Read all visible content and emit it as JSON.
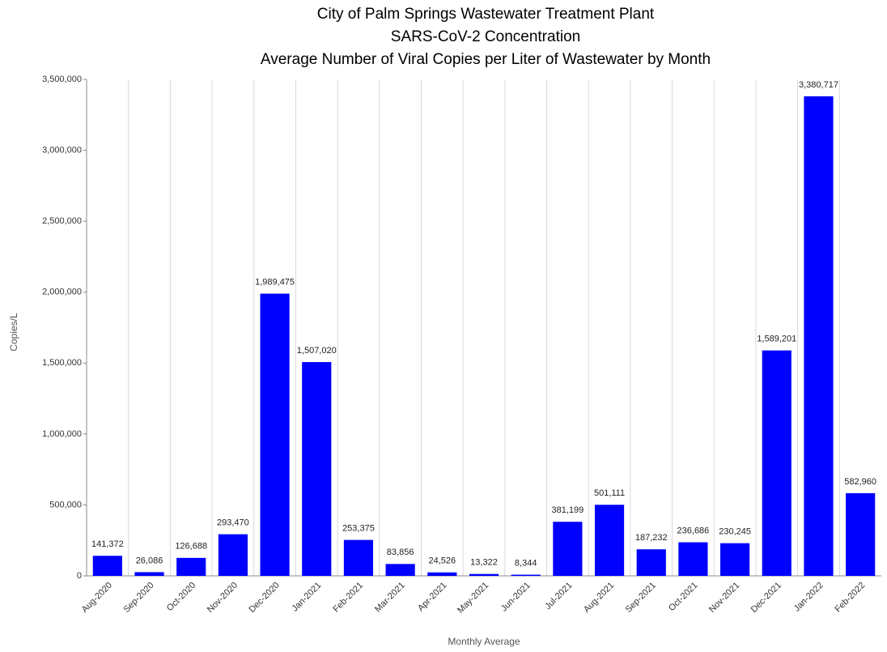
{
  "chart_data": {
    "type": "bar",
    "title": [
      "City of Palm Springs Wastewater Treatment Plant",
      "SARS-CoV-2 Concentration",
      "Average Number of Viral Copies per Liter of Wastewater by Month"
    ],
    "x_label": "Monthly Average",
    "y_label": "Copies/L",
    "categories": [
      "Aug-2020",
      "Sep-2020",
      "Oct-2020",
      "Nov-2020",
      "Dec-2020",
      "Jan-2021",
      "Feb-2021",
      "Mar-2021",
      "Apr-2021",
      "May-2021",
      "Jun-2021",
      "Jul-2021",
      "Aug-2021",
      "Sep-2021",
      "Oct-2021",
      "Nov-2021",
      "Dec-2021",
      "Jan-2022",
      "Feb-2022"
    ],
    "values": [
      141372,
      26086,
      126688,
      293470,
      1989475,
      1507020,
      253375,
      83856,
      24526,
      13322,
      8344,
      381199,
      501111,
      187232,
      236686,
      230245,
      1589201,
      3380717,
      582960
    ],
    "value_labels": [
      "141,372",
      "26,086",
      "126,688",
      "293,470",
      "1,989,475",
      "1,507,020",
      "253,375",
      "83,856",
      "24,526",
      "13,322",
      "8,344",
      "381,199",
      "501,111",
      "187,232",
      "236,686",
      "230,245",
      "1,589,201",
      "3,380,717",
      "582,960"
    ],
    "color": "#0000ff",
    "ylim": [
      0,
      3500000
    ],
    "yticks": [
      0,
      {
        "value": 500000,
        "label": "500,000"
      },
      {
        "value": 1000000,
        "label": "1,000,000"
      },
      {
        "value": 1500000,
        "label": "1,500,000"
      },
      {
        "value": 2000000,
        "label": "2,000,000"
      },
      {
        "value": 2500000,
        "label": "2,500,000"
      },
      {
        "value": 3000000,
        "label": "3,000,000"
      },
      {
        "value": 3500000,
        "label": "3,500,000"
      }
    ],
    "grid": true
  }
}
